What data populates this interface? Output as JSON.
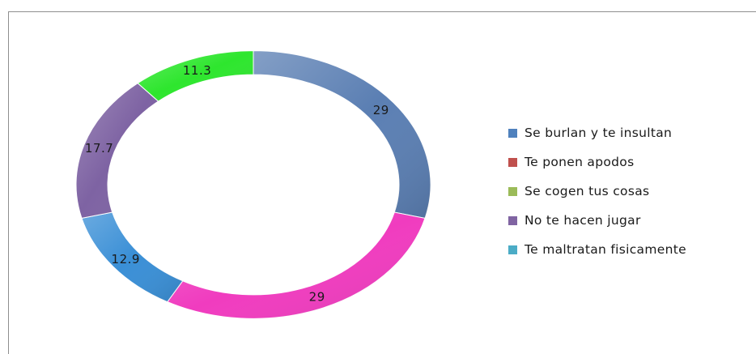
{
  "chart_data": {
    "type": "doughnut",
    "title": "",
    "segments": [
      {
        "label": "",
        "value": 29,
        "data_label": "29",
        "color": "#5b7fb3"
      },
      {
        "label": "",
        "value": 29,
        "data_label": "29",
        "color": "#f03cbf"
      },
      {
        "label": "",
        "value": 12.9,
        "data_label": "12.9",
        "color": "#3a8fd6"
      },
      {
        "label": "",
        "value": 17.7,
        "data_label": "17.7",
        "color": "#7e63a3"
      },
      {
        "label": "",
        "value": 11.3,
        "data_label": "11.3",
        "color": "#2ee62e"
      }
    ],
    "legend": {
      "position": "right",
      "items": [
        {
          "label": "Se burlan y te insultan",
          "color": "#4f81bd"
        },
        {
          "label": "Te ponen apodos",
          "color": "#c0504d"
        },
        {
          "label": "Se cogen tus cosas",
          "color": "#9bbb59"
        },
        {
          "label": "No te hacen jugar",
          "color": "#8064a2"
        },
        {
          "label": "Te maltratan fisicamente",
          "color": "#4bacc6"
        }
      ]
    }
  }
}
